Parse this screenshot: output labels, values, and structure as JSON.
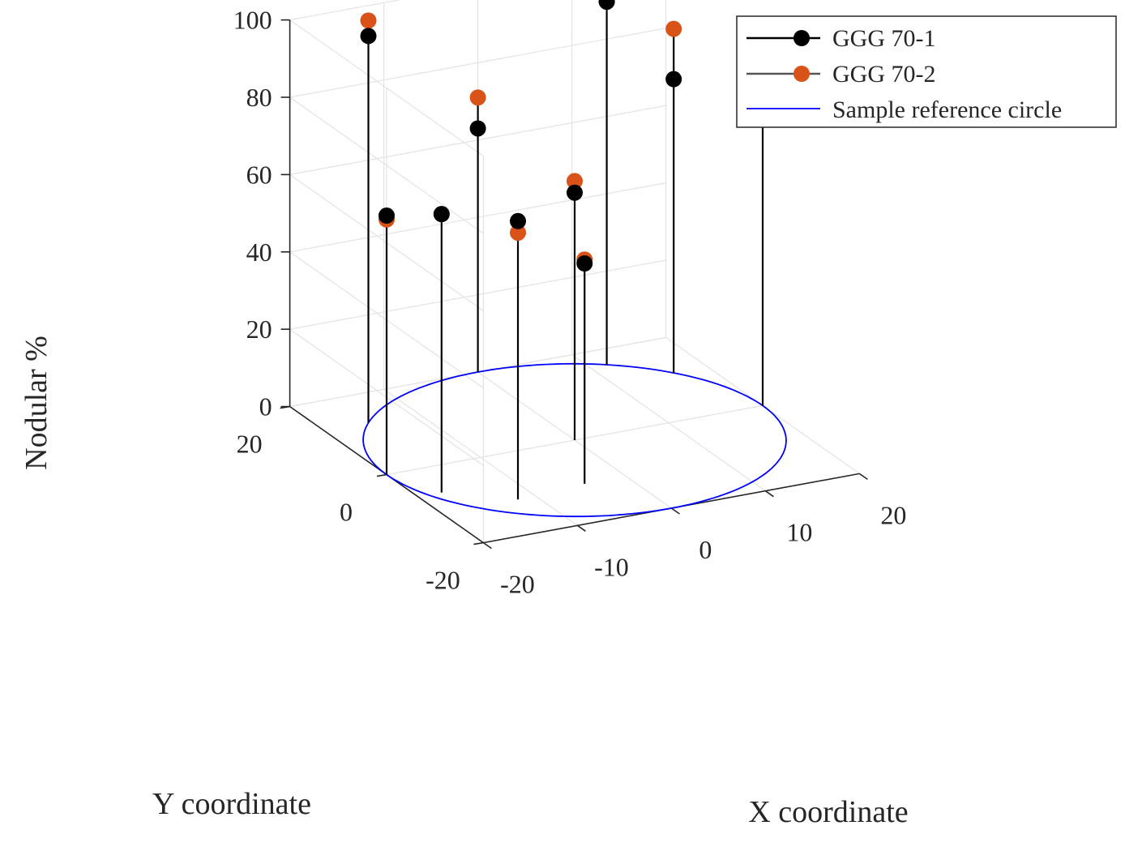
{
  "chart_data": {
    "type": "scatter",
    "subtype": "3d-stem",
    "title": "",
    "xlabel": "X coordinate",
    "ylabel": "Y coordinate",
    "zlabel": "Nodular %",
    "xlim": [
      -20,
      20
    ],
    "ylim": [
      -20,
      20
    ],
    "zlim": [
      0,
      100
    ],
    "xticks": [
      "-20",
      "-10",
      "0",
      "10",
      "20"
    ],
    "yticks": [
      "-20",
      "0",
      "20"
    ],
    "zticks": [
      "0",
      "20",
      "40",
      "60",
      "80",
      "100"
    ],
    "grid": true,
    "legend_position": "top-right",
    "positions": [
      {
        "x": 0,
        "y": 0
      },
      {
        "x": -4.4,
        "y": -10.6
      },
      {
        "x": -11.9,
        "y": -11.4
      },
      {
        "x": -17.5,
        "y": -6.5
      },
      {
        "x": -20,
        "y": 0
      },
      {
        "x": -15.3,
        "y": 12.9
      },
      {
        "x": 0,
        "y": 20
      },
      {
        "x": 11.7,
        "y": 16.1
      },
      {
        "x": 16.4,
        "y": 11.4
      },
      {
        "x": 20,
        "y": 0
      }
    ],
    "series": [
      {
        "name": "GGG 70-1",
        "color": "#000000",
        "z": [
          64,
          57,
          72,
          72,
          67,
          100,
          63,
          94,
          76,
          89
        ]
      },
      {
        "name": "GGG 70-2",
        "color": "#D95319",
        "z": [
          67,
          58,
          69,
          72,
          66,
          104,
          71,
          94,
          89,
          98
        ]
      }
    ],
    "reference": {
      "name": "Sample reference circle",
      "radius": 20,
      "color": "#0000FF"
    }
  }
}
